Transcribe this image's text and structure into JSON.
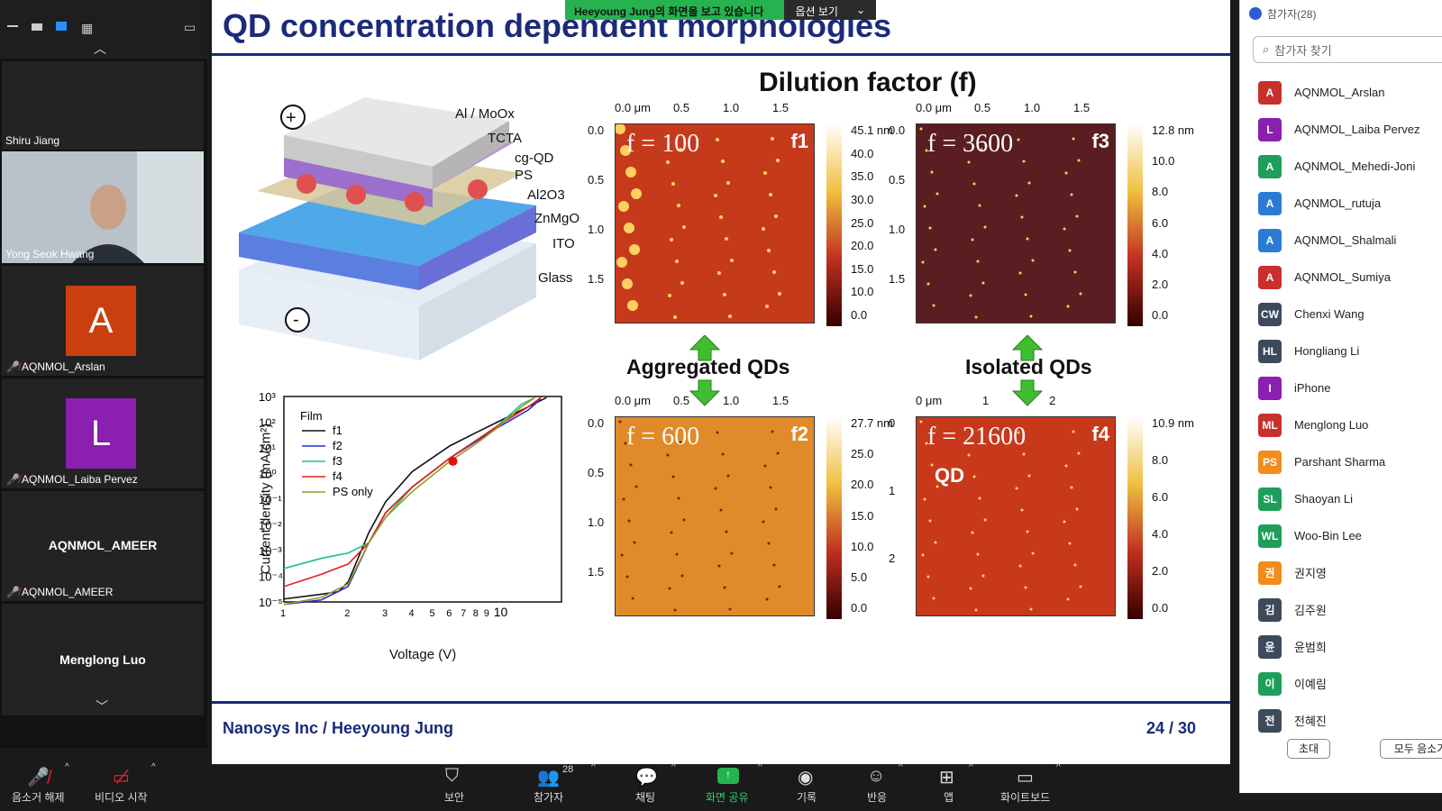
{
  "banner": {
    "sharing_text": "Heeyoung Jung의 화면을 보고 있습니다",
    "options_label": "옵션 보기"
  },
  "gallery": {
    "tiles": [
      {
        "name": "Shiru Jiang"
      },
      {
        "name": "Yong Seok Hwang"
      },
      {
        "name": "AQNMOL_Arslan",
        "initial": "A",
        "color": "#c9400e"
      },
      {
        "name": "AQNMOL_Laiba Pervez",
        "initial": "L",
        "color": "#8a1fb0"
      },
      {
        "name": "AQNMOL_AMEER",
        "center": "AQNMOL_AMEER"
      },
      {
        "name": "Menglong Luo",
        "center": "Menglong Luo"
      }
    ]
  },
  "slide": {
    "title": "QD concentration dependent morphologies",
    "dilution_title": "Dilution factor (f)",
    "aggregated": "Aggregated QDs",
    "isolated": "Isolated QDs",
    "footer_left": "Nanosys Inc / Heeyoung Jung",
    "footer_right": "24 / 30",
    "device_layers": [
      "Al / MoOx",
      "TCTA",
      "cg-QD",
      "PS",
      "Al2O3",
      "ZnMgO",
      "ITO",
      "Glass"
    ],
    "afm": [
      {
        "f": "f = 100",
        "tag": "f1",
        "xticks": [
          "0.0 μm",
          "0.5",
          "1.0",
          "1.5"
        ],
        "yticks": [
          "0.0",
          "0.5",
          "1.0",
          "1.5"
        ],
        "cbar": [
          "45.1 nm",
          "40.0",
          "35.0",
          "30.0",
          "25.0",
          "20.0",
          "15.0",
          "10.0",
          "0.0"
        ]
      },
      {
        "f": "f = 3600",
        "tag": "f3",
        "xticks": [
          "0.0 μm",
          "0.5",
          "1.0",
          "1.5"
        ],
        "yticks": [
          "0.0",
          "0.5",
          "1.0",
          "1.5"
        ],
        "cbar": [
          "12.8 nm",
          "10.0",
          "8.0",
          "6.0",
          "4.0",
          "2.0",
          "0.0"
        ]
      },
      {
        "f": "f = 600",
        "tag": "f2",
        "xticks": [
          "0.0 μm",
          "0.5",
          "1.0",
          "1.5"
        ],
        "yticks": [
          "0.0",
          "0.5",
          "1.0",
          "1.5"
        ],
        "cbar": [
          "27.7 nm",
          "25.0",
          "20.0",
          "15.0",
          "10.0",
          "5.0",
          "0.0"
        ]
      },
      {
        "f": "f = 21600",
        "tag": "f4",
        "xticks": [
          "0 μm",
          "1",
          "2"
        ],
        "yticks": [
          "0",
          "1",
          "2"
        ],
        "cbar": [
          "10.9 nm",
          "8.0",
          "6.0",
          "4.0",
          "2.0",
          "0.0"
        ],
        "note": "QD"
      }
    ]
  },
  "chart_data": {
    "type": "line",
    "xlabel": "Voltage (V)",
    "ylabel": "Current density (mA/cm²)",
    "x_scale": "log",
    "y_scale": "log",
    "xlim": [
      1,
      20
    ],
    "ylim": [
      1e-05,
      1000.0
    ],
    "x_ticklabels": [
      "1",
      "2",
      "3",
      "4",
      "5",
      "6",
      "7",
      "8",
      "9",
      "10"
    ],
    "y_ticklabels": [
      "10⁻⁵",
      "10⁻⁴",
      "10⁻³",
      "10⁻²",
      "10⁻¹",
      "10⁰",
      "10¹",
      "10²",
      "10³"
    ],
    "legend_title": "Film",
    "legend_position": "top-left",
    "series": [
      {
        "name": "f1",
        "color": "#111111",
        "x": [
          1,
          1.5,
          1.8,
          2,
          2.5,
          3,
          4,
          6,
          8,
          10,
          14,
          17
        ],
        "y": [
          1.3e-05,
          2e-05,
          2.5e-05,
          6e-05,
          0.005,
          0.08,
          1.2,
          12,
          40,
          100,
          400,
          900
        ]
      },
      {
        "name": "f2",
        "color": "#2030d0",
        "x": [
          1,
          1.5,
          2,
          2.5,
          3,
          4,
          6,
          8,
          10,
          14,
          16
        ],
        "y": [
          8e-06,
          1.2e-05,
          4e-05,
          0.002,
          0.03,
          0.3,
          4,
          18,
          60,
          300,
          800
        ]
      },
      {
        "name": "f3",
        "color": "#20c080",
        "x": [
          1,
          1.5,
          2,
          2.5,
          3,
          4,
          6,
          8,
          10,
          13,
          15
        ],
        "y": [
          0.0002,
          0.0005,
          0.0008,
          0.002,
          0.02,
          0.3,
          4,
          20,
          70,
          500,
          900
        ]
      },
      {
        "name": "f4",
        "color": "#e02020",
        "x": [
          1,
          1.5,
          2,
          2.5,
          3,
          4,
          6,
          8,
          10,
          14,
          16
        ],
        "y": [
          4e-05,
          0.00012,
          0.0003,
          0.002,
          0.03,
          0.3,
          4,
          20,
          70,
          400,
          900
        ]
      },
      {
        "name": "PS only",
        "color": "#9a9a20",
        "x": [
          1,
          1.5,
          2,
          2.5,
          3,
          4,
          6,
          8,
          10,
          13,
          15
        ],
        "y": [
          8e-06,
          1.5e-05,
          5e-05,
          0.002,
          0.02,
          0.2,
          3,
          15,
          60,
          400,
          900
        ]
      }
    ]
  },
  "panel": {
    "header": "참가자(28)",
    "search_placeholder": "참가자 찾기",
    "invite": "초대",
    "mute_all": "모두 음소거",
    "participants": [
      {
        "initial": "A",
        "name": "AQNMOL_Arslan",
        "color": "#c9302c"
      },
      {
        "initial": "L",
        "name": "AQNMOL_Laiba Pervez",
        "color": "#8a1fb0"
      },
      {
        "initial": "A",
        "name": "AQNMOL_Mehedi-Joni",
        "color": "#1e9e5a"
      },
      {
        "initial": "A",
        "name": "AQNMOL_rutuja",
        "color": "#2b7bd6"
      },
      {
        "initial": "A",
        "name": "AQNMOL_Shalmali",
        "color": "#2b7bd6"
      },
      {
        "initial": "A",
        "name": "AQNMOL_Sumiya",
        "color": "#c9302c"
      },
      {
        "initial": "CW",
        "name": "Chenxi Wang",
        "color": "#3d4a5c"
      },
      {
        "initial": "HL",
        "name": "Hongliang Li",
        "color": "#3d4a5c"
      },
      {
        "initial": "I",
        "name": "iPhone",
        "color": "#8a1fb0"
      },
      {
        "initial": "ML",
        "name": "Menglong Luo",
        "color": "#c9302c"
      },
      {
        "initial": "PS",
        "name": "Parshant Sharma",
        "color": "#f28c1a"
      },
      {
        "initial": "SL",
        "name": "Shaoyan Li",
        "color": "#1e9e5a"
      },
      {
        "initial": "WL",
        "name": "Woo-Bin Lee",
        "color": "#1e9e5a"
      },
      {
        "initial": "권",
        "name": "권지영",
        "color": "#f28c1a"
      },
      {
        "initial": "김",
        "name": "김주원",
        "color": "#3d4a5c"
      },
      {
        "initial": "윤",
        "name": "윤범희",
        "color": "#3d4a5c"
      },
      {
        "initial": "이",
        "name": "이예림",
        "color": "#1e9e5a"
      },
      {
        "initial": "전",
        "name": "전혜진",
        "color": "#3d4a5c"
      }
    ]
  },
  "toolbar": {
    "unmute": "음소거 해제",
    "start_video": "비디오 시작",
    "security": "보안",
    "participants": "참가자",
    "participants_count": "28",
    "chat": "채팅",
    "share_screen": "화면 공유",
    "record": "기록",
    "reactions": "반응",
    "apps": "앱",
    "whiteboard": "화이트보드"
  }
}
